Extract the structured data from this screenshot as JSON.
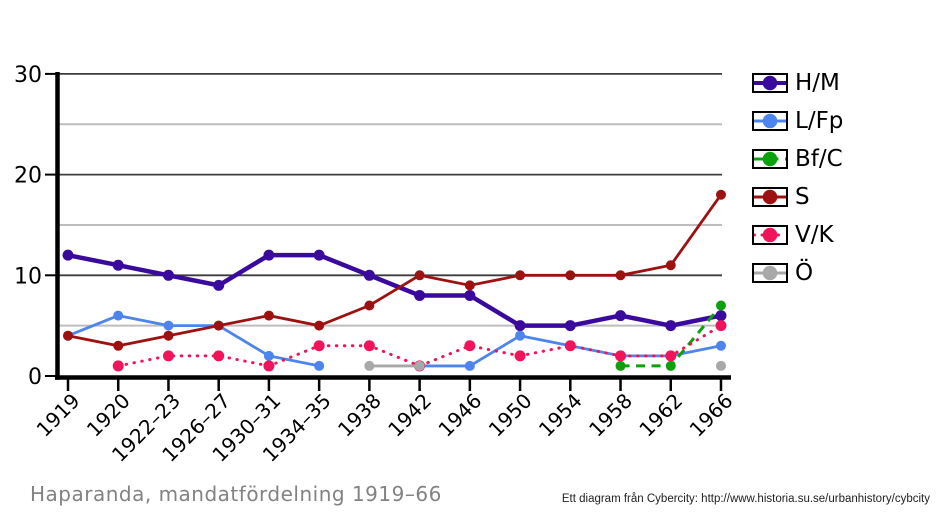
{
  "chart_data": {
    "type": "line",
    "title": "Haparanda, mandatfördelning 1919–66",
    "credit": "Ett diagram från Cybercity: http://www.historia.su.se/urbanhistory/cybcity",
    "categories": [
      "1919",
      "1920",
      "1922–23",
      "1926–27",
      "1930–31",
      "1934–35",
      "1938",
      "1942",
      "1946",
      "1950",
      "1954",
      "1958",
      "1962",
      "1966"
    ],
    "y_ticks": [
      0,
      10,
      20,
      30
    ],
    "ylim": [
      0,
      30
    ],
    "grid": {
      "minor_lines_at": [
        5,
        15,
        25
      ],
      "major_lines_at": [
        10,
        20,
        30
      ],
      "minor_color": "#bdbdbd",
      "major_color": "#3d3d3d"
    },
    "legend_position": "right",
    "series": [
      {
        "name": "H/M",
        "color": "#3A0A9E",
        "line_style": "solid",
        "values": [
          12,
          11,
          10,
          9,
          12,
          12,
          10,
          8,
          8,
          5,
          5,
          6,
          5,
          6
        ]
      },
      {
        "name": "L/Fp",
        "color": "#4D84EE",
        "line_style": "solid",
        "values": [
          4,
          6,
          5,
          5,
          2,
          1,
          null,
          1,
          1,
          4,
          3,
          2,
          2,
          3
        ]
      },
      {
        "name": "Bf/C",
        "color": "#0DA00D",
        "line_style": "dashed",
        "values": [
          null,
          null,
          null,
          null,
          null,
          null,
          null,
          null,
          null,
          null,
          null,
          1,
          1,
          7
        ]
      },
      {
        "name": "S",
        "color": "#9E1111",
        "line_style": "solid",
        "values": [
          4,
          3,
          4,
          5,
          6,
          5,
          7,
          10,
          9,
          10,
          10,
          10,
          11,
          18
        ]
      },
      {
        "name": "V/K",
        "color": "#F2145A",
        "line_style": "dotted",
        "values": [
          null,
          1,
          2,
          2,
          1,
          3,
          3,
          1,
          3,
          2,
          3,
          2,
          2,
          5
        ]
      },
      {
        "name": "Ö",
        "color": "#A8A8A8",
        "line_style": "solid",
        "values": [
          null,
          null,
          null,
          null,
          null,
          null,
          1,
          1,
          null,
          null,
          null,
          null,
          null,
          1
        ]
      }
    ],
    "axis_color": "#000000"
  }
}
